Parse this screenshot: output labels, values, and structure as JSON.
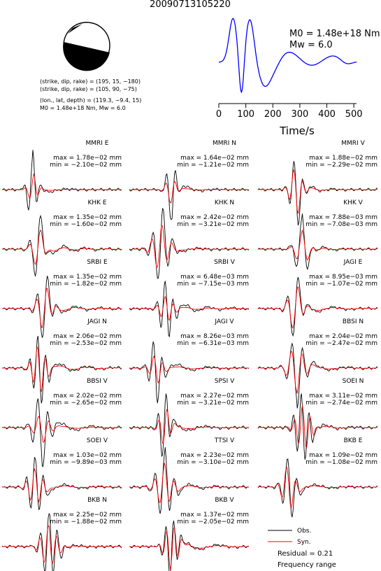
{
  "chart_data": {
    "type": "line",
    "title": "20090713105220",
    "focal_mechanism": {
      "planes": [
        "(strike, dip, rake) = (195, 15, −180)",
        "(strike, dip, rake) = (105, 90, −75)"
      ],
      "location": "(lon., lat, depth) = (119.3, −9.4, 15)",
      "moment": "M0 = 1.48e+18 Nm, Mw = 6.0"
    },
    "source_time_function": {
      "x_label": "Time/s",
      "x_ticks": [
        "0",
        "100",
        "200",
        "300",
        "400",
        "500"
      ],
      "xlim": [
        0,
        510
      ],
      "m0_label": "M0 = 1.48e+18 Nm",
      "mw_label": "Mw = 6.0",
      "line_color": "#0000ff"
    },
    "series_colors": {
      "observed": "#000000",
      "synthetic": "#ff0000"
    },
    "legend": {
      "observed": "Obs.",
      "synthetic": "Syn."
    },
    "residual": "Residual = 0.21",
    "frequency_range": "Frequency range",
    "stations": [
      {
        "name": "MMRI E",
        "max": "max = 1.78e−02 mm",
        "min": "min = −2.10e−02 mm",
        "max_value": 0.0178,
        "min_value": -0.021
      },
      {
        "name": "MMRI N",
        "max": "max = 1.64e−02 mm",
        "min": "min = −1.21e−02 mm",
        "max_value": 0.0164,
        "min_value": -0.0121
      },
      {
        "name": "MMRI V",
        "max": "max = 1.88e−02 mm",
        "min": "min = −2.29e−02 mm",
        "max_value": 0.0188,
        "min_value": -0.0229
      },
      {
        "name": "KHK E",
        "max": "max = 1.35e−02 mm",
        "min": "min = −1.60e−02 mm",
        "max_value": 0.0135,
        "min_value": -0.016
      },
      {
        "name": "KHK N",
        "max": "max = 2.42e−02 mm",
        "min": "min = −3.21e−02 mm",
        "max_value": 0.0242,
        "min_value": -0.0321
      },
      {
        "name": "KHK V",
        "max": "max = 7.88e−03 mm",
        "min": "min = −7.08e−03 mm",
        "max_value": 0.00788,
        "min_value": -0.00708
      },
      {
        "name": "SRBI E",
        "max": "max = 1.35e−02 mm",
        "min": "min = −1.82e−02 mm",
        "max_value": 0.0135,
        "min_value": -0.0182
      },
      {
        "name": "SRBI V",
        "max": "max = 6.48e−03 mm",
        "min": "min = −7.15e−03 mm",
        "max_value": 0.00648,
        "min_value": -0.00715
      },
      {
        "name": "JAGI E",
        "max": "max = 8.95e−03 mm",
        "min": "min = −1.07e−02 mm",
        "max_value": 0.00895,
        "min_value": -0.0107
      },
      {
        "name": "JAGI N",
        "max": "max = 2.06e−02 mm",
        "min": "min = −2.53e−02 mm",
        "max_value": 0.0206,
        "min_value": -0.0253
      },
      {
        "name": "JAGI V",
        "max": "max = 8.26e−03 mm",
        "min": "min = −6.31e−03 mm",
        "max_value": 0.00826,
        "min_value": -0.00631
      },
      {
        "name": "BBSI N",
        "max": "max = 2.04e−02 mm",
        "min": "min = −2.47e−02 mm",
        "max_value": 0.0204,
        "min_value": -0.0247
      },
      {
        "name": "BBSI V",
        "max": "max = 2.02e−02 mm",
        "min": "min = −2.65e−02 mm",
        "max_value": 0.0202,
        "min_value": -0.0265
      },
      {
        "name": "SPSI V",
        "max": "max = 2.27e−02 mm",
        "min": "min = −3.21e−02 mm",
        "max_value": 0.0227,
        "min_value": -0.0321
      },
      {
        "name": "SOEI N",
        "max": "max = 3.11e−02 mm",
        "min": "min = −2.74e−02 mm",
        "max_value": 0.0311,
        "min_value": -0.0274
      },
      {
        "name": "SOEI V",
        "max": "max = 1.03e−02 mm",
        "min": "min = −9.89e−03 mm",
        "max_value": 0.0103,
        "min_value": -0.00989
      },
      {
        "name": "TTSI V",
        "max": "max = 2.23e−02 mm",
        "min": "min = −3.10e−02 mm",
        "max_value": 0.0223,
        "min_value": -0.031
      },
      {
        "name": "BKB E",
        "max": "max = 1.09e−02 mm",
        "min": "min = −1.08e−02 mm",
        "max_value": 0.0109,
        "min_value": -0.0108
      },
      {
        "name": "BKB N",
        "max": "max = 2.25e−02 mm",
        "min": "min = −1.88e−02 mm",
        "max_value": 0.0225,
        "min_value": -0.0188
      },
      {
        "name": "BKB V",
        "max": "max = 1.37e−02 mm",
        "min": "min = −2.05e−02 mm",
        "max_value": 0.0137,
        "min_value": -0.0205
      }
    ]
  }
}
